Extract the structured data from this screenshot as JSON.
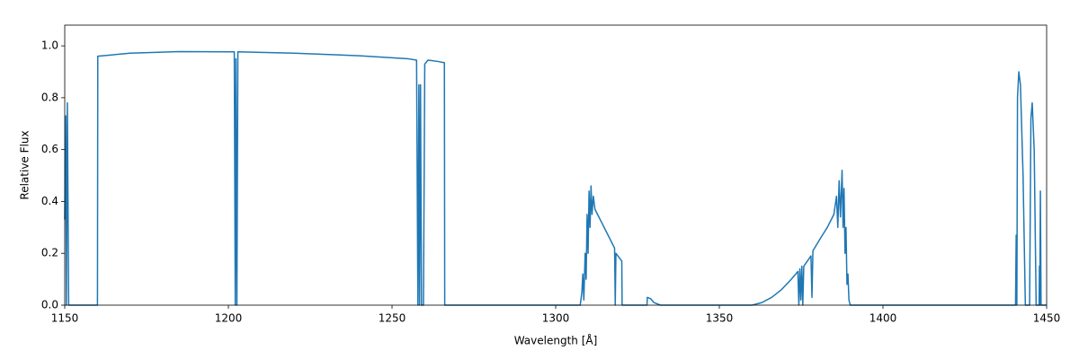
{
  "chart_data": {
    "type": "line",
    "xlabel": "Wavelength [Å]",
    "ylabel": "Relative Flux",
    "color": "#1f77b4",
    "xlim": [
      1150,
      1450
    ],
    "xticks": [
      1150,
      1200,
      1250,
      1300,
      1350,
      1400,
      1450
    ],
    "ylim": [
      0,
      1.08
    ],
    "yticks": [
      {
        "value": 0,
        "label": "0.0"
      },
      0.2,
      0.4,
      0.6,
      0.8,
      {
        "value": 1,
        "label": "1.0"
      }
    ],
    "grid": false,
    "x": [
      1150,
      1150.3,
      1150.5,
      1150.8,
      1151.2,
      1160,
      1160.1,
      1170,
      1185,
      1201.8,
      1202.1,
      1202.3,
      1202.6,
      1202.9,
      1220,
      1240,
      1255,
      1257.5,
      1257.9,
      1258.2,
      1258.4,
      1258.7,
      1259,
      1259.6,
      1260,
      1261,
      1264,
      1266,
      1266.1,
      1307.5,
      1308,
      1308.3,
      1308.6,
      1309,
      1309.3,
      1309.6,
      1309.9,
      1310.2,
      1310.5,
      1310.8,
      1311.1,
      1311.5,
      1312,
      1314,
      1316,
      1318,
      1318.2,
      1318.4,
      1320.2,
      1320.3,
      1327.9,
      1328,
      1329,
      1330,
      1332,
      1360,
      1363,
      1366,
      1369,
      1372,
      1374,
      1374.3,
      1374.6,
      1374.9,
      1375.2,
      1375.5,
      1375.8,
      1378,
      1378.3,
      1378.6,
      1381,
      1383,
      1385,
      1385.8,
      1386.2,
      1386.6,
      1387,
      1387.5,
      1387.8,
      1388.1,
      1388.4,
      1388.7,
      1389,
      1389.3,
      1389.6,
      1390,
      1440.5,
      1440.7,
      1440.9,
      1441.1,
      1441.5,
      1442,
      1442.8,
      1443.5,
      1444.8,
      1445.2,
      1445.6,
      1446.2,
      1446.8,
      1447.7,
      1447.8,
      1447.9,
      1448.1,
      1448.3,
      1450
    ],
    "values": [
      0.33,
      0.73,
      0,
      0.78,
      0,
      0,
      0.96,
      0.972,
      0.978,
      0.977,
      0,
      0.95,
      0,
      0.977,
      0.972,
      0.962,
      0.95,
      0.945,
      0,
      0.85,
      0,
      0.85,
      0,
      0,
      0.93,
      0.945,
      0.94,
      0.935,
      0,
      0,
      0.05,
      0.12,
      0.02,
      0.2,
      0.1,
      0.35,
      0.2,
      0.44,
      0.3,
      0.46,
      0.35,
      0.42,
      0.37,
      0.32,
      0.27,
      0.22,
      0,
      0.2,
      0.17,
      0,
      0,
      0.03,
      0.025,
      0.01,
      0,
      0,
      0.01,
      0.03,
      0.06,
      0.1,
      0.13,
      0,
      0.14,
      0.02,
      0.15,
      0,
      0.15,
      0.19,
      0.03,
      0.21,
      0.26,
      0.3,
      0.35,
      0.42,
      0.3,
      0.48,
      0.34,
      0.52,
      0.3,
      0.45,
      0.2,
      0.3,
      0.08,
      0.12,
      0.02,
      0,
      0,
      0.27,
      0,
      0.8,
      0.9,
      0.85,
      0.5,
      0,
      0,
      0.72,
      0.78,
      0.6,
      0,
      0,
      0.15,
      0,
      0.44,
      0,
      0
    ]
  }
}
